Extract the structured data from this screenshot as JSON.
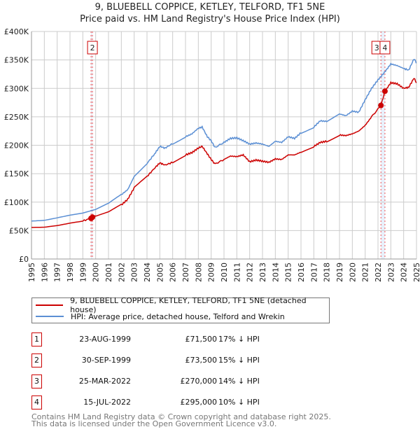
{
  "title": "9, BLUEBELL COPPICE, KETLEY, TELFORD, TF1 5NE",
  "subtitle": "Price paid vs. HM Land Registry's House Price Index (HPI)",
  "chart_data": {
    "type": "line",
    "xlim": [
      1995,
      2025
    ],
    "ylim": [
      0,
      400000
    ],
    "grid": true,
    "y_ticks": [
      0,
      50000,
      100000,
      150000,
      200000,
      250000,
      300000,
      350000,
      400000
    ],
    "y_tick_labels": [
      "£0",
      "£50K",
      "£100K",
      "£150K",
      "£200K",
      "£250K",
      "£300K",
      "£350K",
      "£400K"
    ],
    "x_ticks": [
      "1995",
      "1996",
      "1997",
      "1998",
      "1999",
      "2000",
      "2001",
      "2002",
      "2003",
      "2004",
      "2005",
      "2006",
      "2007",
      "2008",
      "2009",
      "2010",
      "2011",
      "2012",
      "2013",
      "2014",
      "2015",
      "2016",
      "2017",
      "2018",
      "2019",
      "2020",
      "2021",
      "2022",
      "2023",
      "2024",
      "2025"
    ],
    "series": [
      {
        "name": "9, BLUEBELL COPPICE, KETLEY, TELFORD, TF1 5NE (detached house)",
        "color": "#cc0000",
        "x": [
          1995,
          1996,
          1997,
          1998,
          1999,
          1999.64,
          1999.75,
          2000,
          2001,
          2002,
          2002.5,
          2003,
          2004,
          2004.6,
          2005,
          2005.4,
          2006,
          2007,
          2007.5,
          2008,
          2008.3,
          2008.7,
          2009,
          2009.3,
          2010,
          2010.5,
          2011,
          2011.5,
          2012,
          2012.5,
          2013,
          2013.5,
          2014,
          2014.5,
          2015,
          2015.5,
          2016,
          2017,
          2017.5,
          2018,
          2019,
          2019.5,
          2020,
          2020.5,
          2021,
          2021.5,
          2022.23,
          2022.54,
          2023,
          2023.5,
          2024,
          2024.4,
          2024.8,
          2025
        ],
        "y": [
          56000,
          57000,
          60000,
          64000,
          67000,
          71500,
          73500,
          75000,
          82000,
          95000,
          105000,
          125000,
          145000,
          160000,
          169000,
          165000,
          170000,
          183000,
          187000,
          195000,
          198000,
          185000,
          175000,
          167000,
          175000,
          181000,
          180000,
          183000,
          171000,
          174000,
          172000,
          170000,
          176000,
          175000,
          183000,
          183000,
          188000,
          198000,
          205000,
          207000,
          218000,
          217000,
          220000,
          225000,
          235000,
          250000,
          270000,
          295000,
          310000,
          308000,
          300000,
          302000,
          318000,
          310000
        ]
      },
      {
        "name": "HPI: Average price, detached house, Telford and Wrekin",
        "color": "#5b8fd4",
        "x": [
          1995,
          1996,
          1997,
          1998,
          1999,
          2000,
          2001,
          2002,
          2002.5,
          2003,
          2004,
          2004.6,
          2005,
          2005.4,
          2006,
          2007,
          2007.5,
          2008,
          2008.3,
          2008.7,
          2009,
          2009.3,
          2010,
          2010.5,
          2011,
          2011.5,
          2012,
          2012.5,
          2013,
          2013.5,
          2014,
          2014.5,
          2015,
          2015.5,
          2016,
          2017,
          2017.5,
          2018,
          2019,
          2019.5,
          2020,
          2020.5,
          2021,
          2021.5,
          2022,
          2022.5,
          2023,
          2023.5,
          2024,
          2024.4,
          2024.8,
          2025
        ],
        "y": [
          68000,
          69000,
          73000,
          77000,
          80000,
          86000,
          97000,
          113000,
          122000,
          145000,
          168000,
          185000,
          198000,
          195000,
          203000,
          215000,
          220000,
          230000,
          232000,
          215000,
          208000,
          196000,
          205000,
          212000,
          213000,
          208000,
          202000,
          204000,
          202000,
          198000,
          207000,
          205000,
          215000,
          212000,
          222000,
          232000,
          243000,
          242000,
          255000,
          252000,
          260000,
          258000,
          280000,
          300000,
          315000,
          328000,
          343000,
          340000,
          335000,
          332000,
          352000,
          345000
        ]
      }
    ],
    "annotations": [
      {
        "label": "1",
        "x": 1999.64,
        "visible_marker": false
      },
      {
        "label": "2",
        "x": 1999.75
      },
      {
        "label": "3",
        "x": 2022.23
      },
      {
        "label": "4",
        "x": 2022.54
      }
    ],
    "sales_points": [
      {
        "x": 1999.64,
        "y": 71500
      },
      {
        "x": 1999.75,
        "y": 73500
      },
      {
        "x": 2022.23,
        "y": 270000
      },
      {
        "x": 2022.54,
        "y": 295000
      }
    ]
  },
  "legend": {
    "red": "9, BLUEBELL COPPICE, KETLEY, TELFORD, TF1 5NE (detached house)",
    "blue": "HPI: Average price, detached house, Telford and Wrekin"
  },
  "transactions": [
    {
      "num": "1",
      "date": "23-AUG-1999",
      "price": "£71,500",
      "hpi": "17% ↓ HPI"
    },
    {
      "num": "2",
      "date": "30-SEP-1999",
      "price": "£73,500",
      "hpi": "15% ↓ HPI"
    },
    {
      "num": "3",
      "date": "25-MAR-2022",
      "price": "£270,000",
      "hpi": "14% ↓ HPI"
    },
    {
      "num": "4",
      "date": "15-JUL-2022",
      "price": "£295,000",
      "hpi": "10% ↓ HPI"
    }
  ],
  "footer": {
    "line1": "Contains HM Land Registry data © Crown copyright and database right 2025.",
    "line2": "This data is licensed under the Open Government Licence v3.0."
  }
}
